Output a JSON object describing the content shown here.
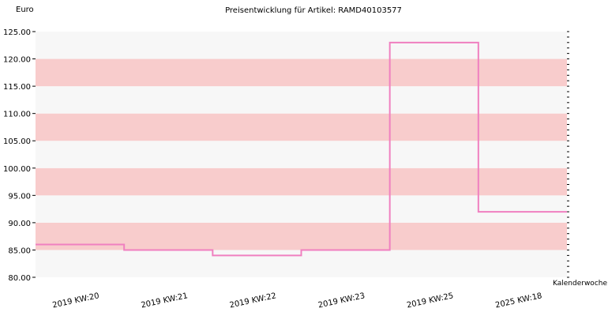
{
  "chart_data": {
    "type": "line",
    "title": "Preisentwicklung für Artikel: RAMD40103577",
    "ylabel": "Euro",
    "xlabel": "Kalenderwoche",
    "ylim": [
      80,
      125
    ],
    "y_ticks": [
      "80.00",
      "85.00",
      "90.00",
      "95.00",
      "100.00",
      "105.00",
      "110.00",
      "115.00",
      "120.00",
      "125.00"
    ],
    "categories": [
      "2019 KW:20",
      "2019 KW:21",
      "2019 KW:22",
      "2019 KW:23",
      "2019 KW:25",
      "2025 KW:18"
    ],
    "series": [
      {
        "values": [
          86,
          85,
          84,
          85,
          123,
          92
        ],
        "color": "#f080c0",
        "style": "step"
      }
    ],
    "band_colors": [
      "#f7f7f7",
      "#f8cccc"
    ],
    "grid": false,
    "legend": "none"
  }
}
